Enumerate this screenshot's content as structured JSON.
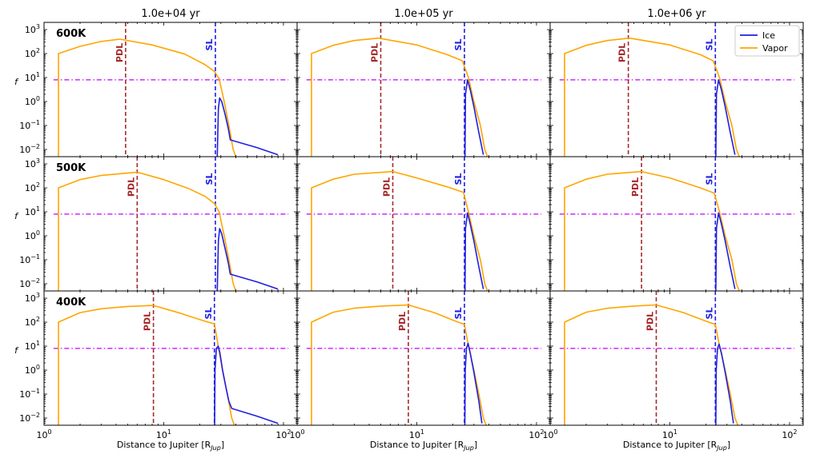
{
  "chart_data": {
    "type": "line",
    "layout": "3x3 grid of log-log panels sharing axes",
    "column_titles": [
      "1.0e+04 yr",
      "1.0e+05 yr",
      "1.0e+06 yr"
    ],
    "row_labels": [
      "600K",
      "500K",
      "400K"
    ],
    "xlabel_prefix": "Distance to Jupiter [R",
    "xlabel_sub": "Jup",
    "xlabel_suffix": "]",
    "ylabel": "f",
    "xscale": "log",
    "yscale": "log",
    "xlim": [
      1,
      130
    ],
    "ylim": [
      0.005,
      2000
    ],
    "xticks": [
      {
        "value": 1,
        "base": "10",
        "exp": "0"
      },
      {
        "value": 10,
        "base": "10",
        "exp": "1"
      },
      {
        "value": 100,
        "base": "10",
        "exp": "2"
      }
    ],
    "yticks": [
      {
        "value": 0.01,
        "base": "10",
        "exp": "−2"
      },
      {
        "value": 0.1,
        "base": "10",
        "exp": "−1"
      },
      {
        "value": 1,
        "base": "10",
        "exp": "0"
      },
      {
        "value": 10,
        "base": "10",
        "exp": "1"
      },
      {
        "value": 100,
        "base": "10",
        "exp": "2"
      },
      {
        "value": 1000,
        "base": "10",
        "exp": "3"
      }
    ],
    "legend": {
      "location": "upper right (top-right panel)",
      "entries": [
        {
          "name": "Ice",
          "color": "#1f1fe0"
        },
        {
          "name": "Vapor",
          "color": "#ffa500"
        }
      ]
    },
    "threshold_line": {
      "y": 8,
      "color": "#bf00ff",
      "style": "dash-dot"
    },
    "vline_labels": {
      "pdl": "PDL",
      "sl": "SL"
    },
    "colors": {
      "ice": "#1f1fe0",
      "vapor": "#ffa500",
      "pdl": "#a52a2a",
      "sl": "#1f1fe0",
      "threshold": "#bf00ff"
    },
    "panels": [
      {
        "row": 0,
        "col": 0,
        "pdl_x": 4.8,
        "sl_x": 27,
        "vapor": [
          [
            1.32,
            0.005
          ],
          [
            1.32,
            100
          ],
          [
            2,
            200
          ],
          [
            3,
            320
          ],
          [
            4.3,
            400
          ],
          [
            8,
            230
          ],
          [
            15,
            95
          ],
          [
            22,
            35
          ],
          [
            26.5,
            18
          ],
          [
            29,
            9
          ],
          [
            32,
            1
          ],
          [
            35,
            0.1
          ],
          [
            38,
            0.01
          ],
          [
            40,
            0.005
          ]
        ],
        "ice": [
          [
            28,
            0.005
          ],
          [
            28.6,
            0.5
          ],
          [
            29.3,
            1.4
          ],
          [
            30.5,
            1.0
          ],
          [
            32.5,
            0.3
          ],
          [
            34.5,
            0.08
          ],
          [
            36,
            0.025
          ],
          [
            60,
            0.012
          ],
          [
            90,
            0.006
          ]
        ]
      },
      {
        "row": 0,
        "col": 1,
        "pdl_x": 5,
        "sl_x": 25,
        "vapor": [
          [
            1.32,
            0.005
          ],
          [
            1.32,
            100
          ],
          [
            2,
            220
          ],
          [
            3,
            350
          ],
          [
            4.8,
            440
          ],
          [
            10,
            230
          ],
          [
            18,
            90
          ],
          [
            24,
            50
          ],
          [
            27,
            10
          ],
          [
            30,
            1
          ],
          [
            34,
            0.1
          ],
          [
            37,
            0.01
          ],
          [
            39,
            0.005
          ]
        ],
        "ice": [
          [
            25.3,
            0.005
          ],
          [
            25.5,
            2
          ],
          [
            26.5,
            8
          ],
          [
            28,
            3
          ],
          [
            30,
            0.6
          ],
          [
            33,
            0.05
          ],
          [
            36,
            0.006
          ]
        ]
      },
      {
        "row": 0,
        "col": 2,
        "pdl_x": 4.5,
        "sl_x": 24,
        "vapor": [
          [
            1.32,
            0.005
          ],
          [
            1.32,
            100
          ],
          [
            2,
            220
          ],
          [
            3,
            350
          ],
          [
            4.6,
            440
          ],
          [
            10,
            230
          ],
          [
            18,
            90
          ],
          [
            23,
            50
          ],
          [
            26,
            10
          ],
          [
            29,
            1
          ],
          [
            33,
            0.1
          ],
          [
            36,
            0.01
          ],
          [
            38,
            0.005
          ]
        ],
        "ice": [
          [
            24.2,
            0.005
          ],
          [
            24.5,
            2
          ],
          [
            25.5,
            8
          ],
          [
            27,
            3
          ],
          [
            29,
            0.6
          ],
          [
            32,
            0.05
          ],
          [
            35,
            0.006
          ]
        ]
      },
      {
        "row": 1,
        "col": 0,
        "pdl_x": 6,
        "sl_x": 27,
        "vapor": [
          [
            1.32,
            0.005
          ],
          [
            1.32,
            100
          ],
          [
            2,
            220
          ],
          [
            3,
            330
          ],
          [
            6,
            450
          ],
          [
            10,
            220
          ],
          [
            16,
            95
          ],
          [
            22,
            45
          ],
          [
            26.5,
            22
          ],
          [
            29,
            10
          ],
          [
            32,
            1
          ],
          [
            35,
            0.1
          ],
          [
            38,
            0.01
          ],
          [
            40,
            0.005
          ]
        ],
        "ice": [
          [
            28,
            0.005
          ],
          [
            28.6,
            0.6
          ],
          [
            29.3,
            2
          ],
          [
            30.5,
            1.2
          ],
          [
            32.5,
            0.3
          ],
          [
            34.5,
            0.08
          ],
          [
            36,
            0.025
          ],
          [
            60,
            0.012
          ],
          [
            90,
            0.006
          ]
        ]
      },
      {
        "row": 1,
        "col": 1,
        "pdl_x": 6.3,
        "sl_x": 25,
        "vapor": [
          [
            1.32,
            0.005
          ],
          [
            1.32,
            100
          ],
          [
            2,
            230
          ],
          [
            3,
            370
          ],
          [
            6.3,
            480
          ],
          [
            10,
            260
          ],
          [
            18,
            110
          ],
          [
            24.5,
            65
          ],
          [
            27,
            10
          ],
          [
            30,
            1
          ],
          [
            34,
            0.1
          ],
          [
            37,
            0.01
          ],
          [
            39,
            0.005
          ]
        ],
        "ice": [
          [
            25.3,
            0.005
          ],
          [
            25.5,
            2
          ],
          [
            26.5,
            9
          ],
          [
            28,
            3
          ],
          [
            30,
            0.6
          ],
          [
            33,
            0.05
          ],
          [
            36,
            0.006
          ]
        ]
      },
      {
        "row": 1,
        "col": 2,
        "pdl_x": 5.8,
        "sl_x": 24,
        "vapor": [
          [
            1.32,
            0.005
          ],
          [
            1.32,
            100
          ],
          [
            2,
            230
          ],
          [
            3,
            370
          ],
          [
            5.8,
            480
          ],
          [
            10,
            260
          ],
          [
            18,
            100
          ],
          [
            23.5,
            60
          ],
          [
            26,
            10
          ],
          [
            29,
            1
          ],
          [
            33,
            0.1
          ],
          [
            36,
            0.01
          ],
          [
            38,
            0.005
          ]
        ],
        "ice": [
          [
            24.2,
            0.005
          ],
          [
            24.5,
            2
          ],
          [
            25.5,
            9
          ],
          [
            27,
            3
          ],
          [
            29,
            0.6
          ],
          [
            32,
            0.05
          ],
          [
            35,
            0.006
          ]
        ]
      },
      {
        "row": 2,
        "col": 0,
        "pdl_x": 8.2,
        "sl_x": 26.5,
        "vapor": [
          [
            1.32,
            0.005
          ],
          [
            1.32,
            100
          ],
          [
            2,
            250
          ],
          [
            3,
            360
          ],
          [
            5,
            450
          ],
          [
            8.2,
            500
          ],
          [
            14,
            230
          ],
          [
            22,
            110
          ],
          [
            26.5,
            85
          ],
          [
            28.5,
            10
          ],
          [
            31,
            1
          ],
          [
            34,
            0.1
          ],
          [
            37,
            0.01
          ],
          [
            39,
            0.005
          ]
        ],
        "ice": [
          [
            26.6,
            0.005
          ],
          [
            26.8,
            1
          ],
          [
            27.5,
            8
          ],
          [
            28.5,
            10
          ],
          [
            29.5,
            5
          ],
          [
            31,
            1
          ],
          [
            33,
            0.2
          ],
          [
            35,
            0.05
          ],
          [
            37,
            0.025
          ],
          [
            60,
            0.012
          ],
          [
            90,
            0.006
          ]
        ]
      },
      {
        "row": 2,
        "col": 1,
        "pdl_x": 8.5,
        "sl_x": 25,
        "vapor": [
          [
            1.32,
            0.005
          ],
          [
            1.32,
            100
          ],
          [
            2,
            260
          ],
          [
            3,
            380
          ],
          [
            5,
            470
          ],
          [
            8.5,
            520
          ],
          [
            14,
            250
          ],
          [
            21,
            110
          ],
          [
            25,
            80
          ],
          [
            27,
            10
          ],
          [
            30,
            1
          ],
          [
            33,
            0.1
          ],
          [
            36,
            0.01
          ],
          [
            38,
            0.005
          ]
        ],
        "ice": [
          [
            25.2,
            0.005
          ],
          [
            25.4,
            1
          ],
          [
            26,
            8
          ],
          [
            26.8,
            13
          ],
          [
            28,
            5
          ],
          [
            30,
            0.8
          ],
          [
            33,
            0.05
          ],
          [
            35,
            0.006
          ]
        ]
      },
      {
        "row": 2,
        "col": 2,
        "pdl_x": 7.7,
        "sl_x": 24,
        "vapor": [
          [
            1.32,
            0.005
          ],
          [
            1.32,
            100
          ],
          [
            2,
            260
          ],
          [
            3,
            380
          ],
          [
            5,
            470
          ],
          [
            7.7,
            520
          ],
          [
            13,
            250
          ],
          [
            20,
            110
          ],
          [
            24,
            80
          ],
          [
            26,
            10
          ],
          [
            29,
            1
          ],
          [
            32,
            0.1
          ],
          [
            35,
            0.01
          ],
          [
            37,
            0.005
          ]
        ],
        "ice": [
          [
            24.2,
            0.005
          ],
          [
            24.4,
            1
          ],
          [
            25,
            8
          ],
          [
            25.8,
            12
          ],
          [
            27,
            5
          ],
          [
            29,
            0.8
          ],
          [
            32,
            0.05
          ],
          [
            34,
            0.006
          ]
        ]
      }
    ]
  }
}
